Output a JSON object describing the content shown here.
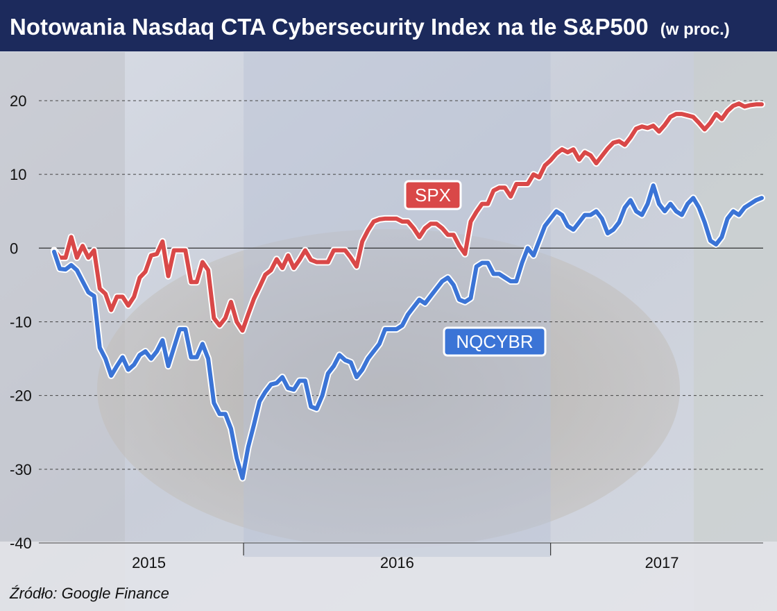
{
  "header": {
    "title": "Notowania Nasdaq CTA Cybersecurity Index na tle S&P500",
    "unit": "(w proc.)"
  },
  "footer": {
    "source": "Źródło: Google Finance"
  },
  "colors": {
    "title_bar": "#1c2a5c",
    "spx": "#d94848",
    "nqcybr": "#3b74d6",
    "label_border": "#ffffff",
    "grid": "#333333"
  },
  "chart_data": {
    "type": "line",
    "ylim": [
      -40,
      20
    ],
    "yticks": [
      20,
      10,
      0,
      -10,
      -20,
      -30,
      -40
    ],
    "grid": "horizontal dashed",
    "x_periods": [
      {
        "label": "2015",
        "start": 0,
        "end": 33.2
      },
      {
        "label": "2016",
        "start": 33.2,
        "end": 87
      },
      {
        "label": "2017",
        "start": 87,
        "end": 126
      }
    ],
    "x_range": [
      0,
      124
    ],
    "series": [
      {
        "name": "SPX",
        "color": "#d94848",
        "x": [
          0,
          1,
          2,
          3,
          4,
          5,
          6,
          7,
          8,
          9,
          10,
          11,
          12,
          13,
          14,
          15,
          16,
          17,
          18,
          19,
          20,
          21,
          22,
          23,
          24,
          25,
          26,
          27,
          28,
          29,
          30,
          31,
          32,
          33,
          34,
          35,
          36,
          37,
          38,
          39,
          40,
          41,
          42,
          43,
          44,
          45,
          46,
          47,
          48,
          49,
          50,
          51,
          52,
          53,
          54,
          55,
          56,
          57,
          58,
          59,
          60,
          61,
          62,
          63,
          64,
          65,
          66,
          67,
          68,
          69,
          70,
          71,
          72,
          73,
          74,
          75,
          76,
          77,
          78,
          79,
          80,
          81,
          82,
          83,
          84,
          85,
          86,
          87,
          88,
          89,
          90,
          91,
          92,
          93,
          94,
          95,
          96,
          97,
          98,
          99,
          100,
          101,
          102,
          103,
          104,
          105,
          106,
          107,
          108,
          109,
          110,
          111,
          112,
          113,
          114,
          115,
          116,
          117,
          118,
          119,
          120,
          121,
          122,
          123,
          124
        ],
        "values": [
          -0.3,
          -1.3,
          -1.3,
          1.5,
          -1.3,
          0.3,
          -1.3,
          -0.3,
          -5.5,
          -6.2,
          -8.4,
          -6.6,
          -6.6,
          -7.8,
          -6.6,
          -4.0,
          -3.2,
          -1.0,
          -0.8,
          0.9,
          -3.8,
          -0.3,
          -0.3,
          -0.3,
          -4.6,
          -4.6,
          -1.9,
          -3.0,
          -9.5,
          -10.5,
          -9.5,
          -7.3,
          -10.0,
          -11.2,
          -9.0,
          -6.9,
          -5.3,
          -3.6,
          -3.0,
          -1.5,
          -2.7,
          -1.0,
          -2.7,
          -1.6,
          -0.3,
          -1.6,
          -1.9,
          -1.9,
          -1.9,
          -0.3,
          -0.3,
          -0.3,
          -1.3,
          -2.5,
          0.9,
          2.4,
          3.6,
          3.9,
          4.0,
          4.0,
          4.0,
          3.6,
          3.6,
          2.7,
          1.5,
          2.7,
          3.3,
          3.3,
          2.7,
          1.8,
          1.8,
          0.3,
          -0.8,
          3.6,
          4.9,
          6.0,
          6.0,
          7.8,
          8.2,
          8.2,
          7.0,
          8.7,
          8.7,
          8.7,
          10.0,
          9.6,
          11.2,
          11.9,
          12.8,
          13.4,
          13.0,
          13.4,
          12.0,
          13.0,
          12.6,
          11.5,
          12.5,
          13.5,
          14.3,
          14.5,
          14.0,
          15.0,
          16.2,
          16.5,
          16.3,
          16.6,
          15.8,
          16.7,
          17.8,
          18.2,
          18.2,
          18.0,
          17.8,
          17.0,
          16.1,
          17.0,
          18.2,
          17.5,
          18.6,
          19.3,
          19.6,
          19.2,
          19.4,
          19.5,
          19.5
        ],
        "label_position": "upper-middle"
      },
      {
        "name": "NQCYBR",
        "color": "#3b74d6",
        "x": [
          0,
          1,
          2,
          3,
          4,
          5,
          6,
          7,
          8,
          9,
          10,
          11,
          12,
          13,
          14,
          15,
          16,
          17,
          18,
          19,
          20,
          21,
          22,
          23,
          24,
          25,
          26,
          27,
          28,
          29,
          30,
          31,
          32,
          33,
          34,
          35,
          36,
          37,
          38,
          39,
          40,
          41,
          42,
          43,
          44,
          45,
          46,
          47,
          48,
          49,
          50,
          51,
          52,
          53,
          54,
          55,
          56,
          57,
          58,
          59,
          60,
          61,
          62,
          63,
          64,
          65,
          66,
          67,
          68,
          69,
          70,
          71,
          72,
          73,
          74,
          75,
          76,
          77,
          78,
          79,
          80,
          81,
          82,
          83,
          84,
          85,
          86,
          87,
          88,
          89,
          90,
          91,
          92,
          93,
          94,
          95,
          96,
          97,
          98,
          99,
          100,
          101,
          102,
          103,
          104,
          105,
          106,
          107,
          108,
          109,
          110,
          111,
          112,
          113,
          114,
          115,
          116,
          117,
          118,
          119,
          120,
          121,
          122,
          123,
          124
        ],
        "values": [
          -0.5,
          -2.8,
          -2.9,
          -2.3,
          -3.0,
          -4.5,
          -6.0,
          -6.5,
          -13.5,
          -15.0,
          -17.3,
          -16.0,
          -14.8,
          -16.5,
          -15.8,
          -14.5,
          -14.0,
          -15.0,
          -14.0,
          -12.5,
          -16.0,
          -13.5,
          -11.0,
          -11.0,
          -14.8,
          -14.8,
          -13.0,
          -15.0,
          -21.0,
          -22.5,
          -22.5,
          -24.5,
          -28.5,
          -31.2,
          -27.0,
          -24.0,
          -20.8,
          -19.5,
          -18.5,
          -18.3,
          -17.5,
          -19.0,
          -19.2,
          -18.0,
          -18.0,
          -21.5,
          -21.8,
          -20.0,
          -17.0,
          -16.0,
          -14.5,
          -15.2,
          -15.5,
          -17.5,
          -16.5,
          -15.0,
          -14.0,
          -13.0,
          -11.0,
          -11.0,
          -11.0,
          -10.5,
          -9.0,
          -8.0,
          -7.0,
          -7.5,
          -6.5,
          -5.5,
          -4.5,
          -4.0,
          -5.0,
          -7.0,
          -7.3,
          -6.8,
          -2.5,
          -2.0,
          -2.0,
          -3.5,
          -3.5,
          -4.0,
          -4.5,
          -4.5,
          -2.0,
          0.0,
          -1.0,
          1.0,
          3.0,
          4.0,
          5.0,
          4.5,
          3.0,
          2.5,
          3.5,
          4.5,
          4.5,
          5.0,
          4.0,
          2.0,
          2.5,
          3.5,
          5.5,
          6.5,
          5.0,
          4.5,
          6.0,
          8.5,
          6.0,
          5.0,
          6.0,
          5.0,
          4.5,
          6.0,
          6.8,
          5.5,
          3.5,
          1.0,
          0.5,
          1.5,
          4.0,
          5.0,
          4.5,
          5.5,
          6.0,
          6.5,
          6.8
        ],
        "label_position": "lower-middle"
      }
    ]
  }
}
